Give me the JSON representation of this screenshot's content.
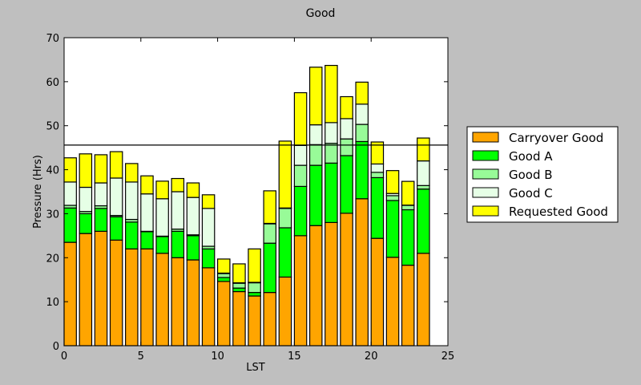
{
  "chart_data": {
    "type": "bar",
    "stacked": true,
    "title": "Good",
    "xlabel": "LST",
    "ylabel": "Pressure (Hrs)",
    "xlim": [
      0,
      25
    ],
    "ylim": [
      0,
      70
    ],
    "xticks": [
      0,
      5,
      10,
      15,
      20,
      25
    ],
    "yticks": [
      0,
      10,
      20,
      30,
      40,
      50,
      60,
      70
    ],
    "grid": false,
    "legend_placement": "right, outside",
    "x": [
      0,
      1,
      2,
      3,
      4,
      5,
      6,
      7,
      8,
      9,
      10,
      11,
      12,
      13,
      14,
      15,
      16,
      17,
      18,
      19,
      20,
      21,
      22,
      23
    ],
    "hline": 45.6,
    "series": [
      {
        "name": "Carryover Good",
        "color": "#ffa500",
        "values": [
          23.5,
          25.5,
          26,
          24,
          22,
          22,
          21,
          20,
          19.5,
          17.7,
          14.6,
          12.3,
          11.3,
          12.1,
          15.6,
          25,
          27.3,
          28,
          30.1,
          33.4,
          24.4,
          20.1,
          18.3,
          21
        ]
      },
      {
        "name": "Good A",
        "color": "#00ff00",
        "values": [
          7.8,
          4.5,
          5.2,
          5.3,
          6.1,
          3.9,
          3.8,
          6.0,
          5.5,
          4.3,
          0.9,
          0.8,
          0.8,
          11.2,
          11.2,
          11.2,
          13.7,
          13.5,
          13.1,
          13,
          13.8,
          12.9,
          12.6,
          14.6
        ]
      },
      {
        "name": "Good B",
        "color": "#98fb98",
        "values": [
          0.6,
          0.5,
          0.6,
          0.3,
          0.6,
          0.1,
          0.1,
          0.5,
          0.2,
          0.6,
          0.9,
          1.1,
          2.2,
          4.4,
          4.4,
          4.8,
          4.7,
          4.5,
          3.8,
          3.9,
          1.2,
          1.1,
          1.0,
          0.8
        ]
      },
      {
        "name": "Good C",
        "color": "#e6ffe6",
        "values": [
          5.3,
          5.5,
          5.2,
          8.5,
          8.5,
          8.5,
          8.5,
          8.5,
          8.5,
          8.6,
          0.1,
          0.1,
          0.1,
          0.1,
          0.1,
          4.5,
          4.5,
          4.7,
          4.6,
          4.6,
          1.9,
          0.5,
          0.05,
          5.6
        ]
      },
      {
        "name": "Requested Good",
        "color": "#ffff00",
        "values": [
          5.5,
          7.6,
          6.4,
          6.0,
          4.2,
          4.1,
          4.0,
          3.0,
          3.3,
          3.1,
          3.2,
          4.3,
          7.6,
          7.4,
          15.2,
          12,
          13.1,
          13,
          5,
          5,
          5,
          5.2,
          5.4,
          5.2
        ]
      }
    ]
  }
}
